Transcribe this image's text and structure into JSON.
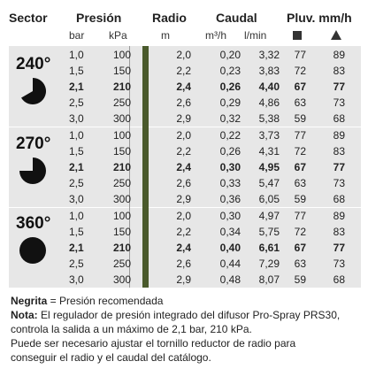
{
  "header": {
    "sector": "Sector",
    "presion": "Presión",
    "radio": "Radio",
    "caudal": "Caudal",
    "pluv": "Pluv. mm/h",
    "bar": "bar",
    "kpa": "kPa",
    "m": "m",
    "m3h": "m³/h",
    "lmin": "l/min",
    "square_icon": "square-icon",
    "triangle_icon": "triangle-icon"
  },
  "sectors": [
    {
      "label": "240°",
      "rows": [
        [
          "1,0",
          "100",
          "2,0",
          "0,20",
          "3,32",
          "77",
          "89"
        ],
        [
          "1,5",
          "150",
          "2,2",
          "0,23",
          "3,83",
          "72",
          "83"
        ],
        [
          "2,1",
          "210",
          "2,4",
          "0,26",
          "4,40",
          "67",
          "77"
        ],
        [
          "2,5",
          "250",
          "2,6",
          "0,29",
          "4,86",
          "63",
          "73"
        ],
        [
          "3,0",
          "300",
          "2,9",
          "0,32",
          "5,38",
          "59",
          "68"
        ]
      ]
    },
    {
      "label": "270°",
      "rows": [
        [
          "1,0",
          "100",
          "2,0",
          "0,22",
          "3,73",
          "77",
          "89"
        ],
        [
          "1,5",
          "150",
          "2,2",
          "0,26",
          "4,31",
          "72",
          "83"
        ],
        [
          "2,1",
          "210",
          "2,4",
          "0,30",
          "4,95",
          "67",
          "77"
        ],
        [
          "2,5",
          "250",
          "2,6",
          "0,33",
          "5,47",
          "63",
          "73"
        ],
        [
          "3,0",
          "300",
          "2,9",
          "0,36",
          "6,05",
          "59",
          "68"
        ]
      ]
    },
    {
      "label": "360°",
      "rows": [
        [
          "1,0",
          "100",
          "2,0",
          "0,30",
          "4,97",
          "77",
          "89"
        ],
        [
          "1,5",
          "150",
          "2,2",
          "0,34",
          "5,75",
          "72",
          "83"
        ],
        [
          "2,1",
          "210",
          "2,4",
          "0,40",
          "6,61",
          "67",
          "77"
        ],
        [
          "2,5",
          "250",
          "2,6",
          "0,44",
          "7,29",
          "63",
          "73"
        ],
        [
          "3,0",
          "300",
          "2,9",
          "0,48",
          "8,07",
          "59",
          "68"
        ]
      ]
    }
  ],
  "notes": {
    "negrita_bold": "Negrita",
    "negrita_rest": " = Presión recomendada",
    "nota_bold": "Nota:",
    "nota_line1": " El regulador de presión integrado del difusor Pro-Spray PRS30,",
    "nota_line2": "controla la salida a un máximo de 2,1 bar, 210 kPa.",
    "line3": "Puede ser necesario ajustar el tornillo reductor de radio para",
    "line4": "conseguir el radio y el caudal del catálogo."
  }
}
